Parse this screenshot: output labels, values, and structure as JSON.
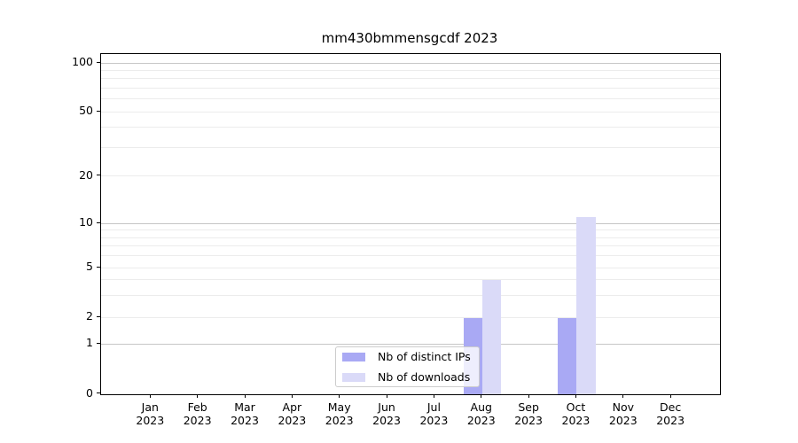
{
  "chart_data": {
    "type": "bar",
    "title": "mm430bmmensgcdf 2023",
    "categories": [
      "Jan",
      "Feb",
      "Mar",
      "Apr",
      "May",
      "Jun",
      "Jul",
      "Aug",
      "Sep",
      "Oct",
      "Nov",
      "Dec"
    ],
    "x_year_label": "2023",
    "series": [
      {
        "name": "Nb of distinct IPs",
        "color": "#a9a9f4",
        "values": [
          0,
          0,
          0,
          0,
          0,
          0,
          0,
          2,
          0,
          2,
          0,
          0
        ]
      },
      {
        "name": "Nb of downloads",
        "color": "#dadaf8",
        "values": [
          0,
          0,
          0,
          0,
          0,
          0,
          0,
          4,
          0,
          11,
          0,
          0
        ]
      }
    ],
    "yscale": "log-like",
    "ylim": [
      0,
      113
    ],
    "yticks": [
      0,
      1,
      2,
      5,
      10,
      20,
      50,
      100
    ],
    "major_gridlines": [
      1,
      10,
      100
    ],
    "minor_gridlines": [
      2,
      3,
      4,
      5,
      6,
      7,
      8,
      9,
      20,
      30,
      40,
      50,
      60,
      70,
      80,
      90
    ],
    "grid": true,
    "legend_position": "lower center inside plot",
    "colors": {
      "major_grid": "#c6c6c6",
      "minor_grid": "#ececec",
      "spine": "#000000",
      "text": "#000000",
      "legend_border": "#cccccc"
    }
  }
}
